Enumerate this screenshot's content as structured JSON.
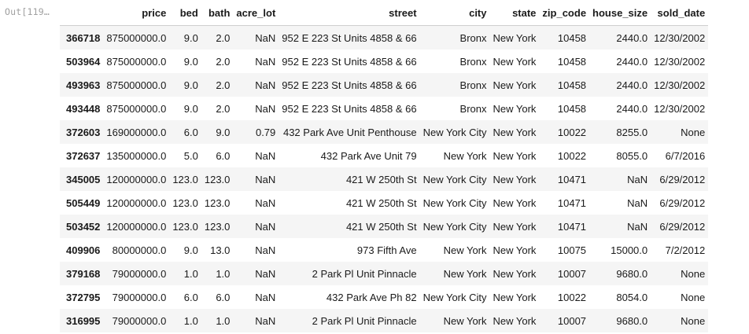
{
  "output_prompt": "Out[119…",
  "table": {
    "index_header": "",
    "columns": [
      "price",
      "bed",
      "bath",
      "acre_lot",
      "street",
      "city",
      "state",
      "zip_code",
      "house_size",
      "sold_date"
    ],
    "rows": [
      {
        "index": "366718",
        "cells": [
          "875000000.0",
          "9.0",
          "2.0",
          "NaN",
          "952 E 223 St Units 4858 & 66",
          "Bronx",
          "New York",
          "10458",
          "2440.0",
          "12/30/2002"
        ]
      },
      {
        "index": "503964",
        "cells": [
          "875000000.0",
          "9.0",
          "2.0",
          "NaN",
          "952 E 223 St Units 4858 & 66",
          "Bronx",
          "New York",
          "10458",
          "2440.0",
          "12/30/2002"
        ]
      },
      {
        "index": "493963",
        "cells": [
          "875000000.0",
          "9.0",
          "2.0",
          "NaN",
          "952 E 223 St Units 4858 & 66",
          "Bronx",
          "New York",
          "10458",
          "2440.0",
          "12/30/2002"
        ]
      },
      {
        "index": "493448",
        "cells": [
          "875000000.0",
          "9.0",
          "2.0",
          "NaN",
          "952 E 223 St Units 4858 & 66",
          "Bronx",
          "New York",
          "10458",
          "2440.0",
          "12/30/2002"
        ]
      },
      {
        "index": "372603",
        "cells": [
          "169000000.0",
          "6.0",
          "9.0",
          "0.79",
          "432 Park Ave Unit Penthouse",
          "New York City",
          "New York",
          "10022",
          "8255.0",
          "None"
        ]
      },
      {
        "index": "372637",
        "cells": [
          "135000000.0",
          "5.0",
          "6.0",
          "NaN",
          "432 Park Ave Unit 79",
          "New York",
          "New York",
          "10022",
          "8055.0",
          "6/7/2016"
        ]
      },
      {
        "index": "345005",
        "cells": [
          "120000000.0",
          "123.0",
          "123.0",
          "NaN",
          "421 W 250th St",
          "New York City",
          "New York",
          "10471",
          "NaN",
          "6/29/2012"
        ]
      },
      {
        "index": "505449",
        "cells": [
          "120000000.0",
          "123.0",
          "123.0",
          "NaN",
          "421 W 250th St",
          "New York City",
          "New York",
          "10471",
          "NaN",
          "6/29/2012"
        ]
      },
      {
        "index": "503452",
        "cells": [
          "120000000.0",
          "123.0",
          "123.0",
          "NaN",
          "421 W 250th St",
          "New York City",
          "New York",
          "10471",
          "NaN",
          "6/29/2012"
        ]
      },
      {
        "index": "409906",
        "cells": [
          "80000000.0",
          "9.0",
          "13.0",
          "NaN",
          "973 Fifth Ave",
          "New York",
          "New York",
          "10075",
          "15000.0",
          "7/2/2012"
        ]
      },
      {
        "index": "379168",
        "cells": [
          "79000000.0",
          "1.0",
          "1.0",
          "NaN",
          "2 Park Pl Unit Pinnacle",
          "New York",
          "New York",
          "10007",
          "9680.0",
          "None"
        ]
      },
      {
        "index": "372795",
        "cells": [
          "79000000.0",
          "6.0",
          "6.0",
          "NaN",
          "432 Park Ave Ph 82",
          "New York City",
          "New York",
          "10022",
          "8054.0",
          "None"
        ]
      },
      {
        "index": "316995",
        "cells": [
          "79000000.0",
          "1.0",
          "1.0",
          "NaN",
          "2 Park Pl Unit Pinnacle",
          "New York",
          "New York",
          "10007",
          "9680.0",
          "None"
        ]
      }
    ]
  }
}
